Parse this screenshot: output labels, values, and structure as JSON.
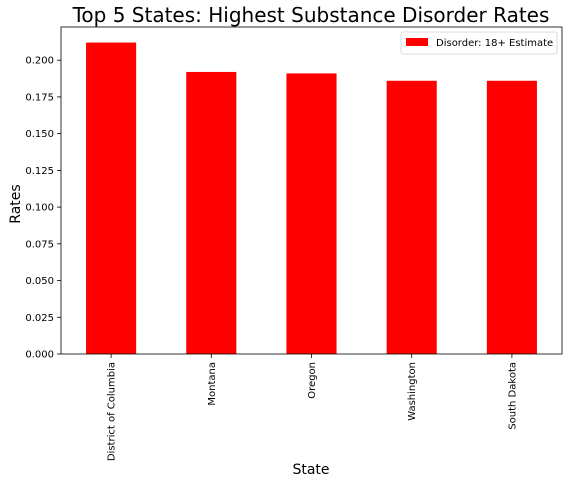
{
  "chart_data": {
    "type": "bar",
    "title": "Top 5 States: Highest Substance Disorder Rates",
    "xlabel": "State",
    "ylabel": "Rates",
    "categories": [
      "District of Columbia",
      "Montana",
      "Oregon",
      "Washington",
      "South Dakota"
    ],
    "series": [
      {
        "name": "Disorder: 18+ Estimate",
        "values": [
          0.212,
          0.192,
          0.191,
          0.186,
          0.186
        ]
      }
    ],
    "ylim": [
      0,
      0.2226
    ],
    "yticks": [
      "0.000",
      "0.025",
      "0.050",
      "0.075",
      "0.100",
      "0.125",
      "0.150",
      "0.175",
      "0.200"
    ],
    "ytick_values": [
      0,
      0.025,
      0.05,
      0.075,
      0.1,
      0.125,
      0.15,
      0.175,
      0.2
    ],
    "grid": false,
    "legend_position": "top-right",
    "bar_color": "#ff0000"
  }
}
